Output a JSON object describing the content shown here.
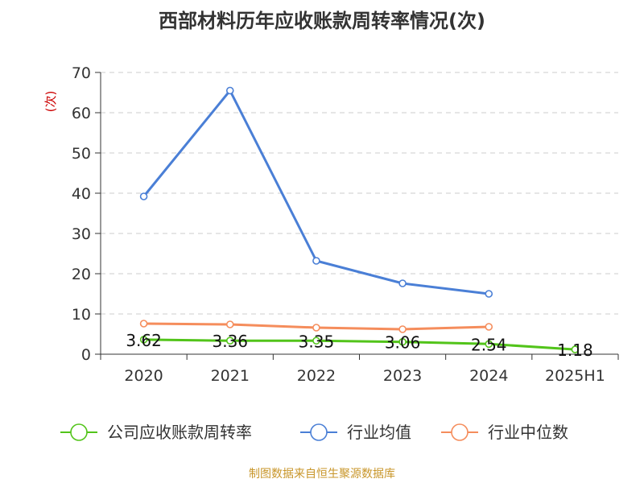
{
  "title": "西部材料历年应收账款周转率情况(次)",
  "source": "制图数据来自恒生聚源数据库",
  "chart_data": {
    "type": "line",
    "title": "西部材料历年应收账款周转率情况(次)",
    "ylabel": "(次)",
    "xlabel": "",
    "ylim": [
      0,
      70
    ],
    "yticks": [
      0,
      10,
      20,
      30,
      40,
      50,
      60,
      70
    ],
    "grid": true,
    "legend_position": "bottom",
    "categories": [
      "2020",
      "2021",
      "2022",
      "2023",
      "2024",
      "2025H1"
    ],
    "series": [
      {
        "name": "公司应收账款周转率",
        "color": "#52c41a",
        "values": [
          3.62,
          3.36,
          3.35,
          3.06,
          2.54,
          1.18
        ],
        "labels": [
          "3.62",
          "3.36",
          "3.35",
          "3.06",
          "2.54",
          "1.18"
        ]
      },
      {
        "name": "行业均值",
        "color": "#4a7fd6",
        "values": [
          39.2,
          65.5,
          23.2,
          17.6,
          15.0,
          null
        ]
      },
      {
        "name": "行业中位数",
        "color": "#f58d5c",
        "values": [
          7.6,
          7.4,
          6.6,
          6.2,
          6.8,
          null
        ]
      }
    ]
  }
}
